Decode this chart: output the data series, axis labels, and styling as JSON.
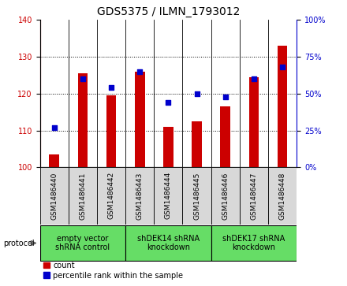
{
  "title": "GDS5375 / ILMN_1793012",
  "samples": [
    "GSM1486440",
    "GSM1486441",
    "GSM1486442",
    "GSM1486443",
    "GSM1486444",
    "GSM1486445",
    "GSM1486446",
    "GSM1486447",
    "GSM1486448"
  ],
  "counts": [
    103.5,
    125.5,
    119.5,
    126.0,
    111.0,
    112.5,
    116.5,
    124.5,
    133.0
  ],
  "percentiles": [
    27,
    60,
    54,
    65,
    44,
    50,
    48,
    60,
    68
  ],
  "ylim_left": [
    100,
    140
  ],
  "ylim_right": [
    0,
    100
  ],
  "yticks_left": [
    100,
    110,
    120,
    130,
    140
  ],
  "yticks_right": [
    0,
    25,
    50,
    75,
    100
  ],
  "bar_color": "#cc0000",
  "dot_color": "#0000cc",
  "bar_bottom": 100,
  "groups": [
    {
      "label": "empty vector\nshRNA control",
      "start": 0,
      "end": 3,
      "color": "#66dd66"
    },
    {
      "label": "shDEK14 shRNA\nknockdown",
      "start": 3,
      "end": 6,
      "color": "#66dd66"
    },
    {
      "label": "shDEK17 shRNA\nknockdown",
      "start": 6,
      "end": 9,
      "color": "#66dd66"
    }
  ],
  "protocol_label": "protocol",
  "legend_count_label": "count",
  "legend_pct_label": "percentile rank within the sample",
  "plot_bg_color": "#ffffff",
  "sample_box_color": "#d8d8d8",
  "title_fontsize": 10,
  "tick_label_fontsize": 7,
  "sample_label_fontsize": 6.5,
  "group_label_fontsize": 7,
  "grid_color": "#000000"
}
